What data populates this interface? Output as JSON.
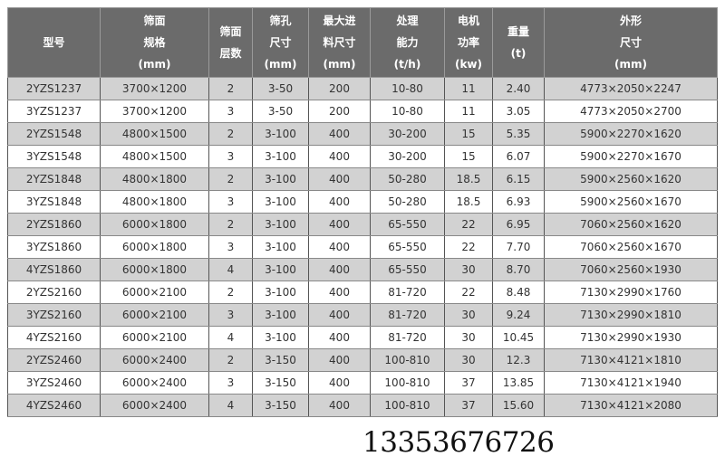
{
  "headers": [
    [
      "型号"
    ],
    [
      "筛面",
      "规格",
      "(mm)"
    ],
    [
      "筛面",
      "层数"
    ],
    [
      "筛孔",
      "尺寸",
      "(mm)"
    ],
    [
      "最大进",
      "料尺寸",
      "(mm)"
    ],
    [
      "处理",
      "能力",
      "(t/h)"
    ],
    [
      "电机",
      "功率",
      "(kw)"
    ],
    [
      "重量",
      "(t)"
    ],
    [
      "外形",
      "尺寸",
      "(mm)"
    ]
  ],
  "rows": [
    [
      "2YZS1237",
      "3700×1200",
      "2",
      "3-50",
      "200",
      "10-80",
      "11",
      "2.40",
      "4773×2050×2247"
    ],
    [
      "3YZS1237",
      "3700×1200",
      "3",
      "3-50",
      "200",
      "10-80",
      "11",
      "3.05",
      "4773×2050×2700"
    ],
    [
      "2YZS1548",
      "4800×1500",
      "2",
      "3-100",
      "400",
      "30-200",
      "15",
      "5.35",
      "5900×2270×1620"
    ],
    [
      "3YZS1548",
      "4800×1500",
      "3",
      "3-100",
      "400",
      "30-200",
      "15",
      "6.07",
      "5900×2270×1670"
    ],
    [
      "2YZS1848",
      "4800×1800",
      "2",
      "3-100",
      "400",
      "50-280",
      "18.5",
      "6.15",
      "5900×2560×1620"
    ],
    [
      "3YZS1848",
      "4800×1800",
      "3",
      "3-100",
      "400",
      "50-280",
      "18.5",
      "6.93",
      "5900×2560×1670"
    ],
    [
      "2YZS1860",
      "6000×1800",
      "2",
      "3-100",
      "400",
      "65-550",
      "22",
      "6.95",
      "7060×2560×1620"
    ],
    [
      "3YZS1860",
      "6000×1800",
      "3",
      "3-100",
      "400",
      "65-550",
      "22",
      "7.70",
      "7060×2560×1670"
    ],
    [
      "4YZS1860",
      "6000×1800",
      "4",
      "3-100",
      "400",
      "65-550",
      "30",
      "8.70",
      "7060×2560×1930"
    ],
    [
      "2YZS2160",
      "6000×2100",
      "2",
      "3-100",
      "400",
      "81-720",
      "22",
      "8.48",
      "7130×2990×1760"
    ],
    [
      "3YZS2160",
      "6000×2100",
      "3",
      "3-100",
      "400",
      "81-720",
      "30",
      "9.24",
      "7130×2990×1810"
    ],
    [
      "4YZS2160",
      "6000×2100",
      "4",
      "3-100",
      "400",
      "81-720",
      "30",
      "10.45",
      "7130×2990×1930"
    ],
    [
      "2YZS2460",
      "6000×2400",
      "2",
      "3-150",
      "400",
      "100-810",
      "30",
      "12.3",
      "7130×4121×1810"
    ],
    [
      "3YZS2460",
      "6000×2400",
      "3",
      "3-150",
      "400",
      "100-810",
      "37",
      "13.85",
      "7130×4121×1940"
    ],
    [
      "4YZS2460",
      "6000×2400",
      "4",
      "3-150",
      "400",
      "100-810",
      "37",
      "15.60",
      "7130×4121×2080"
    ]
  ],
  "watermark": "13353676726"
}
